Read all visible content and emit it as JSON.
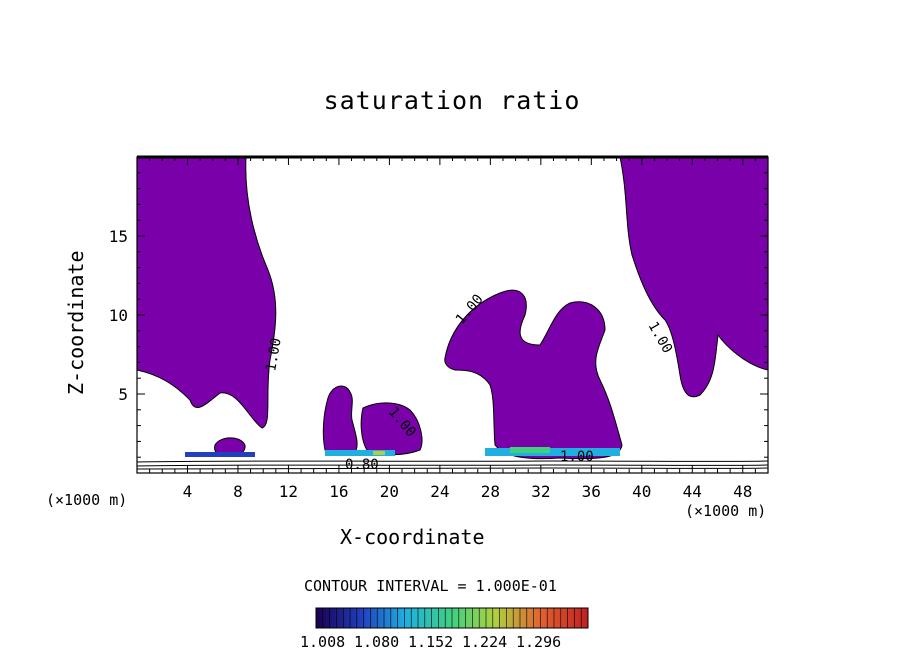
{
  "chart_data": {
    "type": "contour",
    "title": "saturation ratio",
    "xlabel": "X-coordinate",
    "ylabel": "Z-coordinate",
    "x_unit_label": "(×1000 m)",
    "xlim": [
      0,
      50
    ],
    "ylim": [
      0,
      20
    ],
    "xticks": [
      4,
      8,
      12,
      16,
      20,
      24,
      28,
      32,
      36,
      40,
      44,
      48
    ],
    "yticks": [
      5,
      10,
      15
    ],
    "contour_interval_text": "CONTOUR INTERVAL = 1.000E-01",
    "contour_labels": [
      "1.00",
      "1.00",
      "1.00",
      "1.00",
      "1.00",
      "0.80"
    ],
    "colorbar": {
      "ticks": [
        "1.008",
        "1.080",
        "1.152",
        "1.224",
        "1.296"
      ],
      "colors": [
        "#1a0050",
        "#2040c0",
        "#20b0e0",
        "#40d080",
        "#b0d040",
        "#e06030",
        "#c02020"
      ]
    },
    "fill_color": "#7a00aa"
  }
}
